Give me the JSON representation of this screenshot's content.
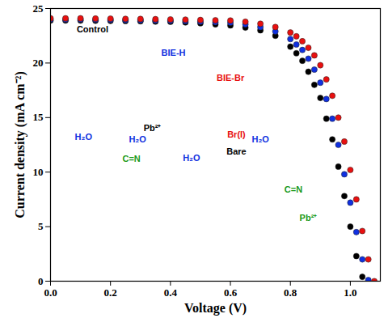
{
  "chart_data": {
    "type": "scatter",
    "x_label": "Voltage (V)",
    "y_label": "Current density (mA cm⁻²)",
    "xlim": [
      0,
      1.1
    ],
    "ylim": [
      0,
      25
    ],
    "xticks": [
      {
        "value": 0,
        "label": "0.0"
      },
      {
        "value": 0.2,
        "label": "0.2"
      },
      {
        "value": 0.4,
        "label": "0.4"
      },
      {
        "value": 0.6,
        "label": "0.6"
      },
      {
        "value": 0.8,
        "label": "0.8"
      },
      {
        "value": 1.0,
        "label": "1.0"
      }
    ],
    "yticks": [
      0,
      5,
      10,
      15,
      20,
      25
    ],
    "grid": false,
    "x": [
      0,
      0.05,
      0.1,
      0.15,
      0.2,
      0.25,
      0.3,
      0.35,
      0.4,
      0.45,
      0.5,
      0.55,
      0.6,
      0.65,
      0.7,
      0.75,
      0.8,
      0.82,
      0.84,
      0.86,
      0.88,
      0.9,
      0.92,
      0.94,
      0.96,
      0.98,
      1.0,
      1.02,
      1.04,
      1.06,
      1.08
    ],
    "series": [
      {
        "name": "Control",
        "color": "#000000",
        "marker": "circle",
        "values": [
          23.9,
          23.9,
          23.9,
          23.88,
          23.86,
          23.85,
          23.83,
          23.8,
          23.78,
          23.72,
          23.65,
          23.55,
          23.45,
          23.25,
          23.0,
          22.5,
          21.5,
          20.9,
          20.2,
          19.2,
          18.0,
          16.8,
          14.9,
          13.0,
          10.5,
          7.8,
          5.0,
          2.3,
          0.4,
          null,
          null
        ]
      },
      {
        "name": "BIE-H",
        "color": "#1030e0",
        "marker": "circle",
        "values": [
          24.0,
          24.0,
          24.0,
          23.98,
          23.97,
          23.95,
          23.93,
          23.9,
          23.88,
          23.85,
          23.8,
          23.75,
          23.7,
          23.55,
          23.3,
          22.9,
          22.2,
          21.7,
          21.2,
          20.4,
          19.4,
          18.2,
          16.7,
          14.9,
          12.5,
          9.8,
          7.2,
          4.5,
          2.0,
          0.1,
          null
        ]
      },
      {
        "name": "BIE-Br",
        "color": "#e81010",
        "marker": "circle",
        "values": [
          24.1,
          24.1,
          24.1,
          24.08,
          24.07,
          24.05,
          24.04,
          24.02,
          24.0,
          23.98,
          23.95,
          23.92,
          23.9,
          23.78,
          23.6,
          23.3,
          22.8,
          22.45,
          22.0,
          21.4,
          20.7,
          19.8,
          18.5,
          17.0,
          15.0,
          12.8,
          10.2,
          7.5,
          4.6,
          2.0,
          0.0
        ]
      }
    ],
    "annotations": [
      {
        "text": "Control",
        "x": 0.14,
        "y": 23.1,
        "color": "#000000"
      },
      {
        "text": "BIE-H",
        "x": 0.41,
        "y": 20.9,
        "color": "#1030e0"
      },
      {
        "text": "BIE-Br",
        "x": 0.6,
        "y": 18.6,
        "color": "#e81010"
      },
      {
        "text": "H₂O",
        "x": 0.11,
        "y": 13.2,
        "color": "#1030e0"
      },
      {
        "text": "H₂O",
        "x": 0.29,
        "y": 13.0,
        "color": "#1030e0"
      },
      {
        "text": "H₂O",
        "x": 0.47,
        "y": 11.3,
        "color": "#1030e0"
      },
      {
        "text": "H₂O",
        "x": 0.7,
        "y": 13.0,
        "color": "#1030e0"
      },
      {
        "text": "Pb²⁺",
        "x": 0.34,
        "y": 14.0,
        "color": "#000000"
      },
      {
        "text": "Br(I)",
        "x": 0.62,
        "y": 13.4,
        "color": "#e81010"
      },
      {
        "text": "Bare",
        "x": 0.62,
        "y": 11.9,
        "color": "#000000"
      },
      {
        "text": "C=N",
        "x": 0.27,
        "y": 11.2,
        "color": "#1a9a1a"
      },
      {
        "text": "C=N",
        "x": 0.81,
        "y": 8.4,
        "color": "#1a9a1a"
      },
      {
        "text": "Pb²⁺",
        "x": 0.86,
        "y": 5.8,
        "color": "#1a9a1a"
      }
    ]
  }
}
